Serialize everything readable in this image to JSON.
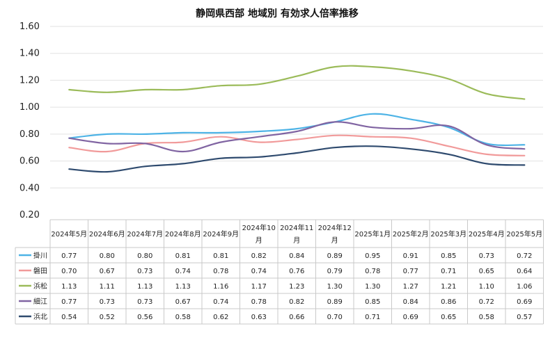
{
  "chart_data": {
    "type": "line",
    "title": "静岡県西部 地域別 有効求人倍率推移",
    "xlabel": "",
    "ylabel": "",
    "ylim": [
      0.2,
      1.6
    ],
    "y_ticks": [
      "1.60",
      "1.40",
      "1.20",
      "1.00",
      "0.80",
      "0.60",
      "0.40",
      "0.20"
    ],
    "grid": true,
    "legend": "data-table-left",
    "categories": [
      [
        "2024年5月"
      ],
      [
        "2024年6月"
      ],
      [
        "2024年7月"
      ],
      [
        "2024年8月"
      ],
      [
        "2024年9月"
      ],
      [
        "2024年10",
        "月"
      ],
      [
        "2024年11",
        "月"
      ],
      [
        "2024年12",
        "月"
      ],
      [
        "2025年1月"
      ],
      [
        "2025年2月"
      ],
      [
        "2025年3月"
      ],
      [
        "2025年4月"
      ],
      [
        "2025年5月"
      ]
    ],
    "series": [
      {
        "name": "掛川",
        "color": "#4db3e6",
        "values": [
          0.77,
          0.8,
          0.8,
          0.81,
          0.81,
          0.82,
          0.84,
          0.89,
          0.95,
          0.91,
          0.85,
          0.73,
          0.72
        ],
        "labels": [
          "0.77",
          "0.80",
          "0.80",
          "0.81",
          "0.81",
          "0.82",
          "0.84",
          "0.89",
          "0.95",
          "0.91",
          "0.85",
          "0.73",
          "0.72"
        ]
      },
      {
        "name": "磐田",
        "color": "#f19a9a",
        "values": [
          0.7,
          0.67,
          0.73,
          0.74,
          0.78,
          0.74,
          0.76,
          0.79,
          0.78,
          0.77,
          0.71,
          0.65,
          0.64
        ],
        "labels": [
          "0.70",
          "0.67",
          "0.73",
          "0.74",
          "0.78",
          "0.74",
          "0.76",
          "0.79",
          "0.78",
          "0.77",
          "0.71",
          "0.65",
          "0.64"
        ]
      },
      {
        "name": "浜松",
        "color": "#9bbb59",
        "values": [
          1.13,
          1.11,
          1.13,
          1.13,
          1.16,
          1.17,
          1.23,
          1.3,
          1.3,
          1.27,
          1.21,
          1.1,
          1.06
        ],
        "labels": [
          "1.13",
          "1.11",
          "1.13",
          "1.13",
          "1.16",
          "1.17",
          "1.23",
          "1.30",
          "1.30",
          "1.27",
          "1.21",
          "1.10",
          "1.06"
        ]
      },
      {
        "name": "細江",
        "color": "#8064a2",
        "values": [
          0.77,
          0.73,
          0.73,
          0.67,
          0.74,
          0.78,
          0.82,
          0.89,
          0.85,
          0.84,
          0.86,
          0.72,
          0.69
        ],
        "labels": [
          "0.77",
          "0.73",
          "0.73",
          "0.67",
          "0.74",
          "0.78",
          "0.82",
          "0.89",
          "0.85",
          "0.84",
          "0.86",
          "0.72",
          "0.69"
        ]
      },
      {
        "name": "浜北",
        "color": "#2e4a6e",
        "values": [
          0.54,
          0.52,
          0.56,
          0.58,
          0.62,
          0.63,
          0.66,
          0.7,
          0.71,
          0.69,
          0.65,
          0.58,
          0.57
        ],
        "labels": [
          "0.54",
          "0.52",
          "0.56",
          "0.58",
          "0.62",
          "0.63",
          "0.66",
          "0.70",
          "0.71",
          "0.69",
          "0.65",
          "0.58",
          "0.57"
        ]
      }
    ]
  }
}
